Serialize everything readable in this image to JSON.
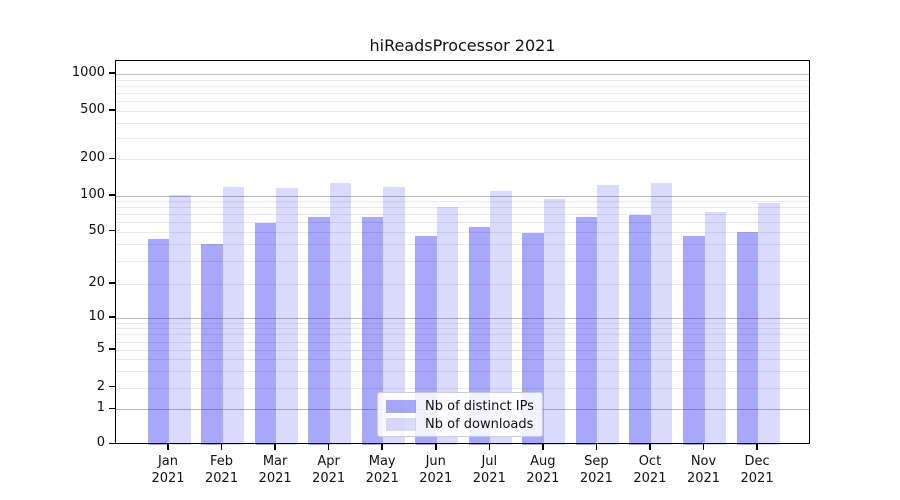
{
  "figure": {
    "background": "#ffffff"
  },
  "chart_data": {
    "type": "bar",
    "title": "hiReadsProcessor 2021",
    "categories": [
      "Jan 2021",
      "Feb 2021",
      "Mar 2021",
      "Apr 2021",
      "May 2021",
      "Jun 2021",
      "Jul 2021",
      "Aug 2021",
      "Sep 2021",
      "Oct 2021",
      "Nov 2021",
      "Dec 2021"
    ],
    "series": [
      {
        "name": "Nb of distinct IPs",
        "color": "rgba(0,0,240,0.34)",
        "solid_color": "#a9a9f7",
        "values": [
          44,
          40,
          59,
          66,
          66,
          46,
          55,
          49,
          66,
          69,
          46,
          50
        ]
      },
      {
        "name": "Nb of downloads",
        "color": "rgba(0,0,240,0.145)",
        "solid_color": "#dadaf9",
        "values": [
          101,
          119,
          117,
          127,
          118,
          80,
          110,
          95,
          122,
          127,
          73,
          87
        ]
      }
    ],
    "yscale": "symlog",
    "yticks": [
      0,
      1,
      2,
      5,
      10,
      20,
      50,
      100,
      200,
      500,
      1000
    ],
    "ylim": [
      0,
      1400
    ],
    "xlabel": "",
    "ylabel": "",
    "grid": "both",
    "legend_position": "lower center",
    "colors": {
      "grid_major": "#bbbbbb",
      "grid_minor": "#e9e9e9",
      "axis": "#000000",
      "text": "#111111"
    }
  }
}
